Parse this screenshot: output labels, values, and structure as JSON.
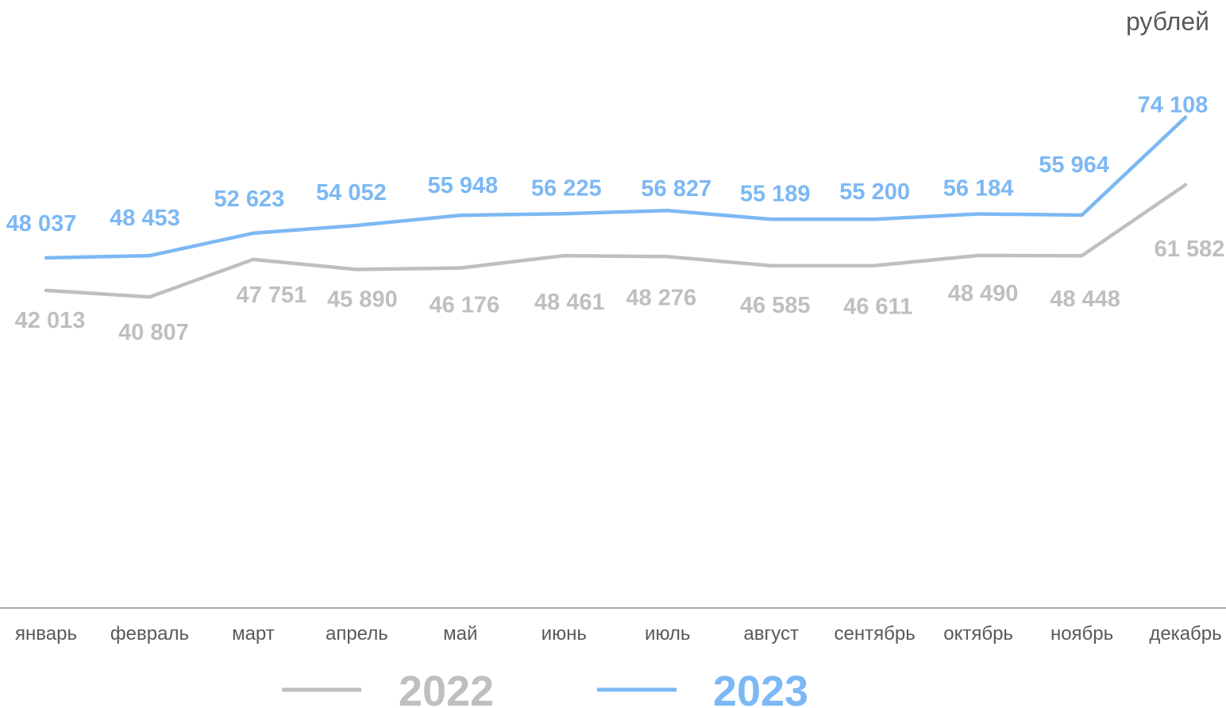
{
  "chart_data": {
    "type": "line",
    "unit_label": "рублей",
    "categories": [
      "январь",
      "февраль",
      "март",
      "апрель",
      "май",
      "июнь",
      "июль",
      "август",
      "сентябрь",
      "октябрь",
      "ноябрь",
      "декабрь"
    ],
    "series": [
      {
        "name": "2022",
        "color": "#bfbfbf",
        "values": [
          42013,
          40807,
          47751,
          45890,
          46176,
          48461,
          48276,
          46585,
          46611,
          48490,
          48448,
          61582
        ],
        "labels": [
          "42 013",
          "40 807",
          "47 751",
          "45 890",
          "46 176",
          "48 461",
          "48 276",
          "46 585",
          "46 611",
          "48 490",
          "48 448",
          "61 582"
        ]
      },
      {
        "name": "2023",
        "color": "#7cb8f4",
        "values": [
          48037,
          48453,
          52623,
          54052,
          55948,
          56225,
          56827,
          55189,
          55200,
          56184,
          55964,
          74108
        ],
        "labels": [
          "48 037",
          "48 453",
          "52 623",
          "54 052",
          "55 948",
          "56 225",
          "56 827",
          "55 189",
          "55 200",
          "56 184",
          "55 964",
          "74 108"
        ]
      }
    ],
    "legend_position": "bottom",
    "grid": false
  }
}
